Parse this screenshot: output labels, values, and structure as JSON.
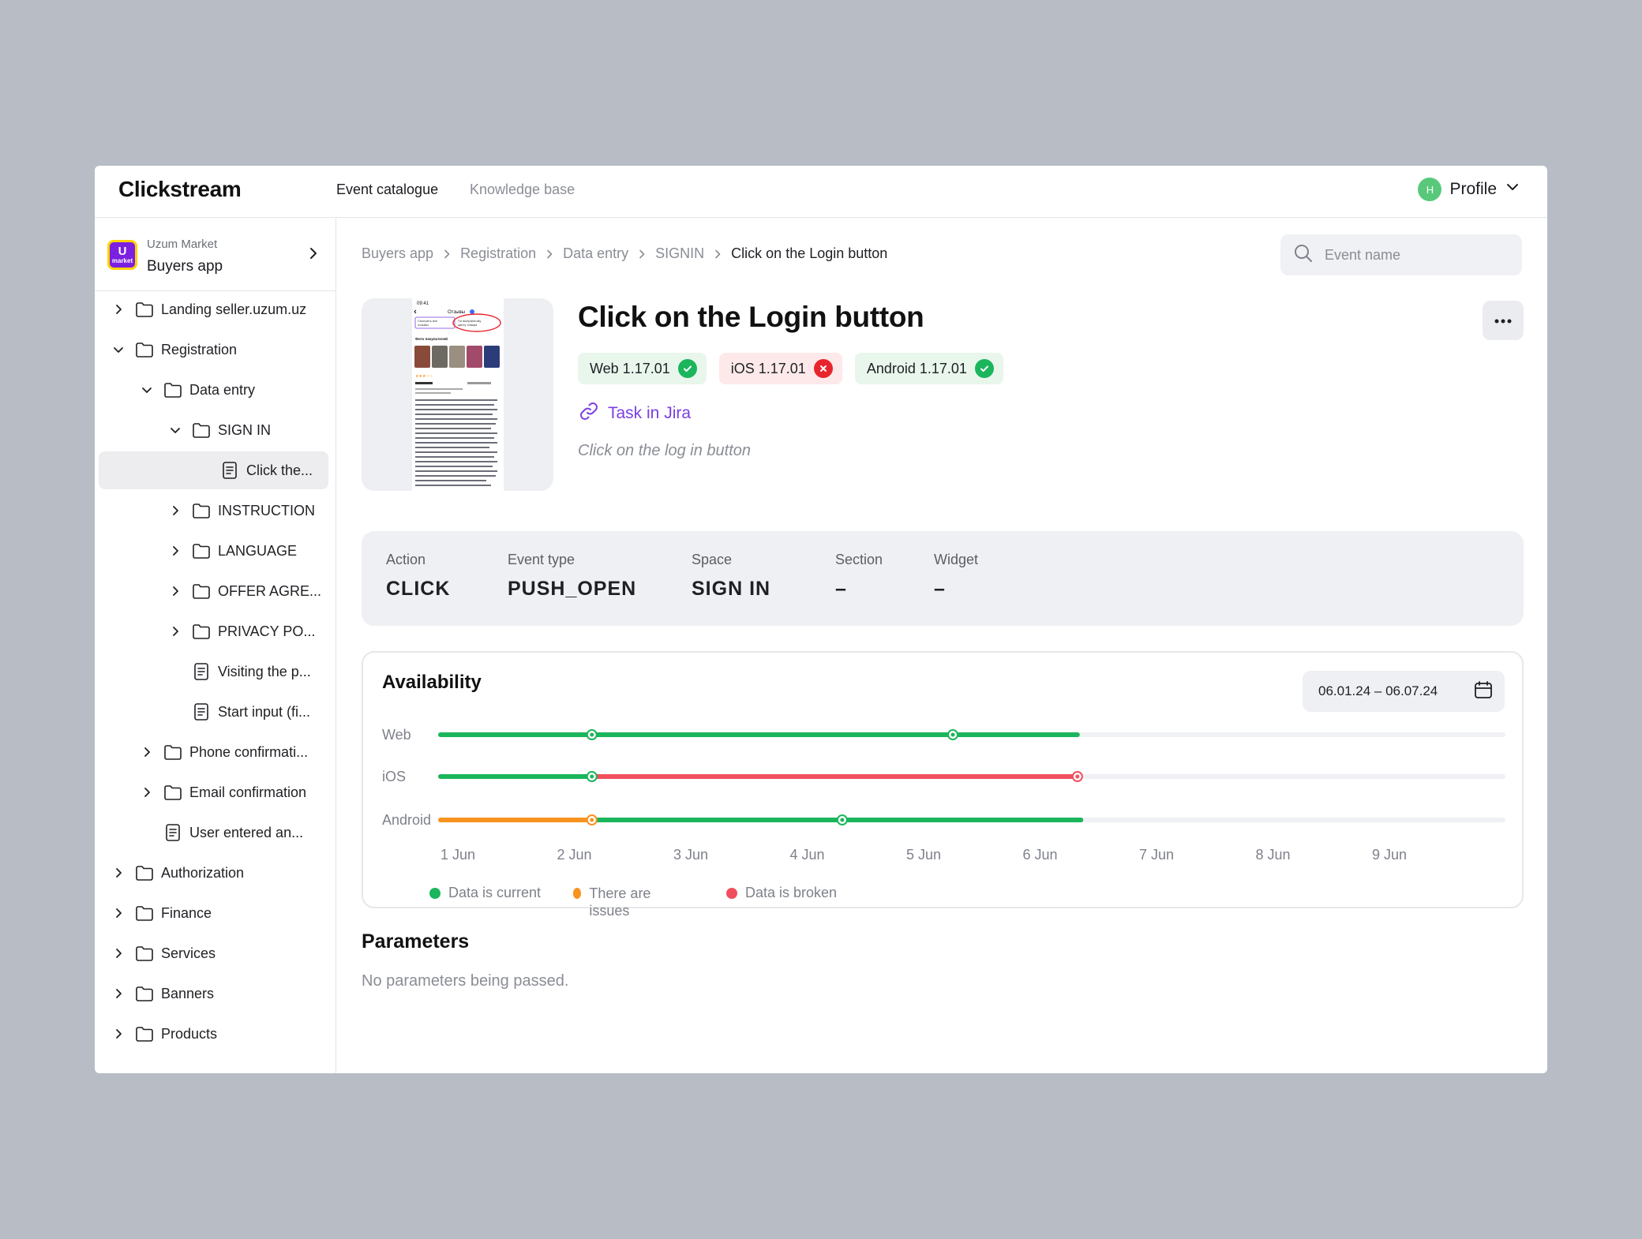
{
  "app": {
    "title": "Clickstream"
  },
  "nav": {
    "items": [
      {
        "label": "Event catalogue",
        "active": true
      },
      {
        "label": "Knowledge base",
        "active": false
      }
    ]
  },
  "profile": {
    "initial": "H",
    "label": "Profile",
    "avatar_color": "#58c97a"
  },
  "workspace": {
    "org": "Uzum Market",
    "name": "Buyers app",
    "logo_text": "market"
  },
  "tree": [
    {
      "label": "Landing seller.uzum.uz",
      "type": "folder",
      "expanded": false
    },
    {
      "label": "Registration",
      "type": "folder",
      "expanded": true
    },
    {
      "label": "Data entry",
      "type": "folder",
      "expanded": true
    },
    {
      "label": "SIGN IN",
      "type": "folder",
      "expanded": true
    },
    {
      "label": "Click the...",
      "type": "doc",
      "selected": true
    },
    {
      "label": "INSTRUCTION",
      "type": "folder",
      "expanded": false
    },
    {
      "label": "LANGUAGE",
      "type": "folder",
      "expanded": false
    },
    {
      "label": "OFFER AGRE...",
      "type": "folder",
      "expanded": false
    },
    {
      "label": "PRIVACY PO...",
      "type": "folder",
      "expanded": false
    },
    {
      "label": "Visiting the p...",
      "type": "doc"
    },
    {
      "label": "Start input (fi...",
      "type": "doc"
    },
    {
      "label": "Phone confirmati...",
      "type": "folder",
      "expanded": false
    },
    {
      "label": "Email confirmation",
      "type": "folder",
      "expanded": false
    },
    {
      "label": "User entered an...",
      "type": "doc"
    },
    {
      "label": "Authorization",
      "type": "folder",
      "expanded": false
    },
    {
      "label": "Finance",
      "type": "folder",
      "expanded": false
    },
    {
      "label": "Services",
      "type": "folder",
      "expanded": false
    },
    {
      "label": "Banners",
      "type": "folder",
      "expanded": false
    },
    {
      "label": "Products",
      "type": "folder",
      "expanded": false
    }
  ],
  "breadcrumb": [
    "Buyers app",
    "Registration",
    "Data entry",
    "SIGNIN",
    "Click on the Login button"
  ],
  "search": {
    "placeholder": "Event name",
    "value": ""
  },
  "event": {
    "title": "Click on the Login button",
    "platforms": [
      {
        "label": "Web 1.17.01",
        "status": "ok"
      },
      {
        "label": "iOS 1.17.01",
        "status": "error"
      },
      {
        "label": "Android 1.17.01",
        "status": "ok"
      }
    ],
    "jira_label": "Task in Jira",
    "description": "Click on the log in button"
  },
  "properties": [
    {
      "label": "Action",
      "value": "CLICK"
    },
    {
      "label": "Event type",
      "value": "PUSH_OPEN"
    },
    {
      "label": "Space",
      "value": "SIGN IN"
    },
    {
      "label": "Section",
      "value": "–"
    },
    {
      "label": "Widget",
      "value": "–"
    }
  ],
  "availability": {
    "title": "Availability",
    "date_range": "06.01.24 – 06.07.24",
    "legend": [
      {
        "label": "Data is current",
        "color": "#1bb55c"
      },
      {
        "label": "There are issues",
        "color": "#f7931e"
      },
      {
        "label": "Data is broken",
        "color": "#f0505e"
      }
    ]
  },
  "chart_data": {
    "type": "timeline",
    "categories": [
      "1 Jun",
      "2 Jun",
      "3 Jun",
      "4 Jun",
      "5 Jun",
      "6 Jun",
      "7 Jun",
      "8 Jun",
      "9 Jun"
    ],
    "series": [
      {
        "name": "Web",
        "segments": [
          {
            "from": 0.0,
            "to": 1.3,
            "status": "current"
          },
          {
            "from": 1.3,
            "to": 4.4,
            "status": "current"
          },
          {
            "from": 4.4,
            "to": 5.47,
            "status": "current"
          }
        ],
        "markers": [
          1.3,
          4.4
        ]
      },
      {
        "name": "iOS",
        "segments": [
          {
            "from": 0.0,
            "to": 1.3,
            "status": "current"
          },
          {
            "from": 1.3,
            "to": 5.47,
            "status": "broken"
          }
        ],
        "markers": [
          1.3,
          5.47
        ]
      },
      {
        "name": "Android",
        "segments": [
          {
            "from": 0.0,
            "to": 1.3,
            "status": "issues"
          },
          {
            "from": 1.3,
            "to": 5.5,
            "status": "current"
          }
        ],
        "markers": [
          1.3,
          3.45
        ]
      }
    ],
    "status_colors": {
      "current": "#1bb55c",
      "issues": "#f7931e",
      "broken": "#f0505e",
      "track": "#f0f1f4"
    }
  },
  "parameters": {
    "title": "Parameters",
    "empty_text": "No parameters being passed."
  }
}
